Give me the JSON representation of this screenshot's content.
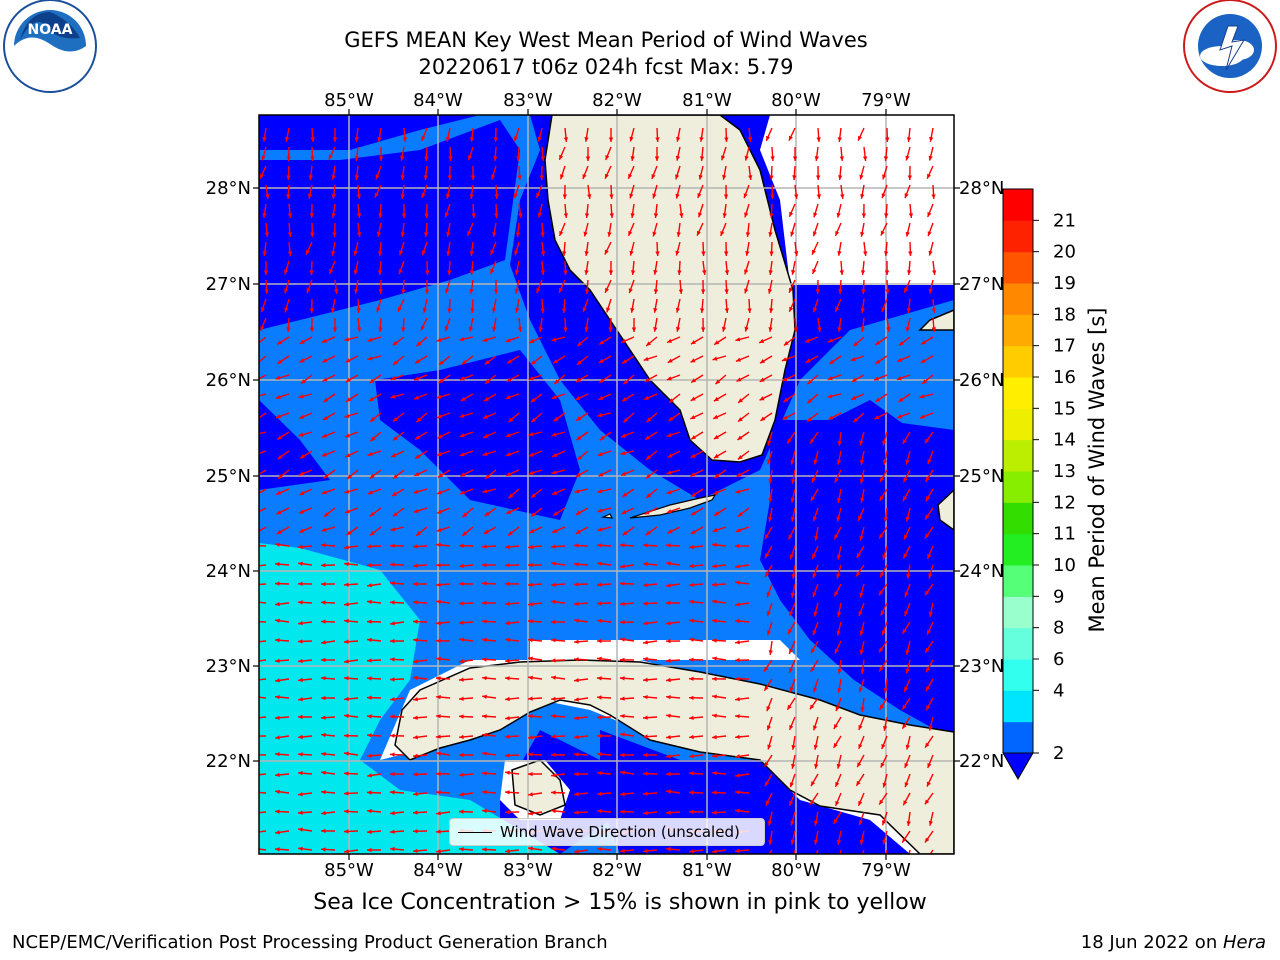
{
  "title": {
    "line1": "GEFS MEAN Key West Mean Period of Wind Waves",
    "line2": "20220617 t06z 024h fcst    Max: 5.79"
  },
  "logos": {
    "left": "NOAA",
    "right": "NATIONAL WEATHER SERVICE"
  },
  "map": {
    "lon_labels": [
      "85°W",
      "84°W",
      "83°W",
      "82°W",
      "81°W",
      "80°W",
      "79°W"
    ],
    "lat_labels": [
      "28°N",
      "27°N",
      "26°N",
      "25°N",
      "24°N",
      "23°N",
      "22°N"
    ],
    "lon_range": [
      -86.0,
      -78.3
    ],
    "lat_range": [
      21.0,
      28.75
    ],
    "legend_label": "Wind Wave Direction (unscaled)",
    "arrow_color": "#ff0000"
  },
  "colorbar": {
    "label": "Mean Period of Wind Waves [s]",
    "ticks": [
      "2",
      "4",
      "6",
      "8",
      "9",
      "10",
      "11",
      "12",
      "13",
      "14",
      "15",
      "16",
      "17",
      "18",
      "19",
      "20",
      "21"
    ],
    "colors": [
      "#0066ff",
      "#00e5ff",
      "#33ffee",
      "#66ffdd",
      "#99ffcc",
      "#55ff77",
      "#22ee22",
      "#33dd00",
      "#88ee00",
      "#bbee00",
      "#eeee00",
      "#ffee00",
      "#ffcc00",
      "#ffaa00",
      "#ff8800",
      "#ff5500",
      "#ff2200",
      "#ff0000"
    ],
    "under_color": "#0000ff"
  },
  "note": "Sea Ice Concentration > 15% is shown in pink to yellow",
  "footer": {
    "left": "NCEP/EMC/Verification Post Processing Product Generation Branch",
    "right_prefix": "18 Jun 2022 on ",
    "right_host": "Hera"
  }
}
